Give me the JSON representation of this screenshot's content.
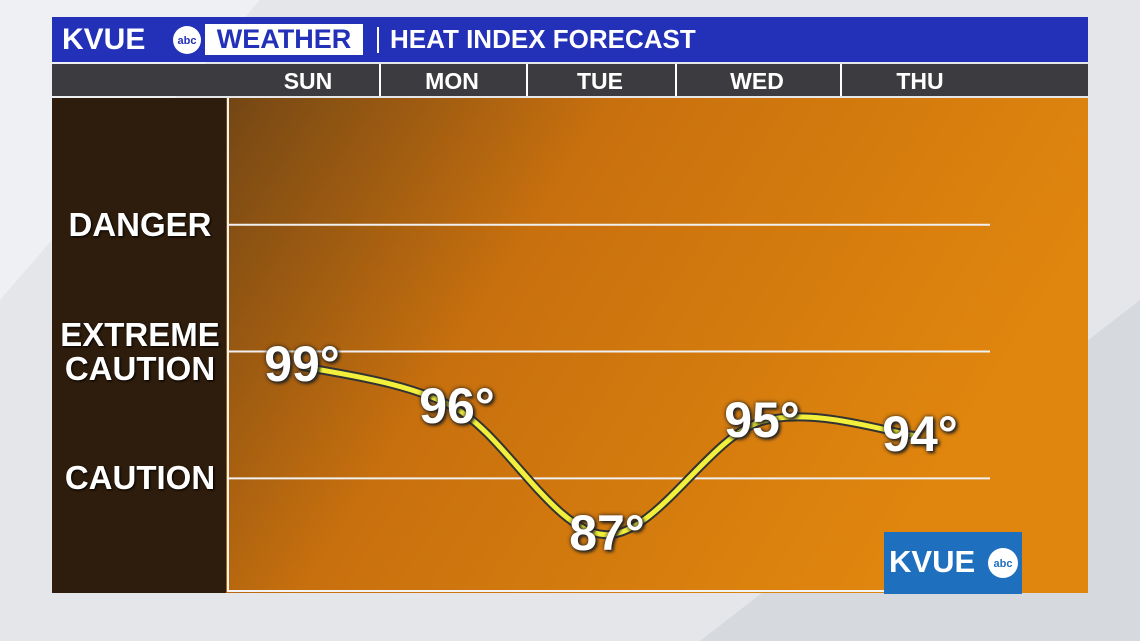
{
  "brand": "KVUE",
  "network": "abc",
  "section": "WEATHER",
  "chart_data": {
    "type": "line",
    "title": "HEAT INDEX FORECAST",
    "categories": [
      "SUN",
      "MON",
      "TUE",
      "WED",
      "THU"
    ],
    "values": [
      99,
      96,
      87,
      95,
      94
    ],
    "value_labels": [
      "99°",
      "96°",
      "87°",
      "95°",
      "94°"
    ],
    "color": "#f2f03a",
    "ylim": [
      83,
      118
    ],
    "yticks": [
      {
        "value": 91,
        "label": "CAUTION"
      },
      {
        "value": 100,
        "label": "EXTREME CAUTION"
      },
      {
        "value": 109,
        "label": "DANGER"
      }
    ],
    "grid": true
  }
}
